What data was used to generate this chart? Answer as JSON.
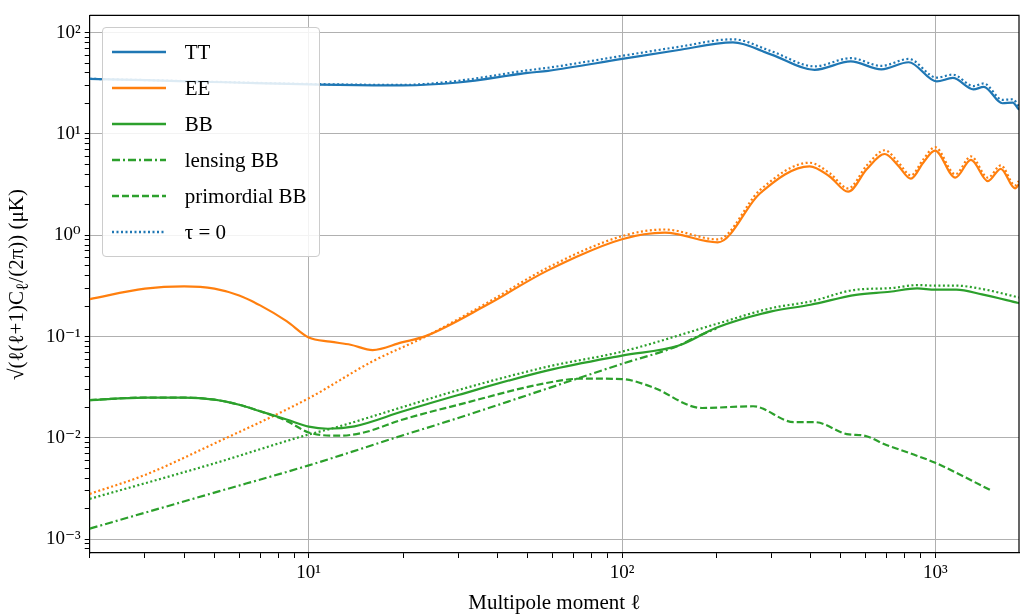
{
  "chart_data": {
    "type": "line",
    "xlabel": "Multipole moment ℓ",
    "ylabel": "√(ℓ(ℓ+1)C$_{ℓ}$/(2π)) (μK)",
    "log": "xy",
    "grid": true,
    "legend": "top left",
    "marker": "none",
    "xlim": [
      2,
      1850
    ],
    "ylim": [
      0.00073,
      148
    ],
    "xticks": [
      {
        "value": 2,
        "label": null
      },
      {
        "value": 3,
        "label": null
      },
      {
        "value": 4,
        "label": null
      },
      {
        "value": 5,
        "label": null
      },
      {
        "value": 6,
        "label": null
      },
      {
        "value": 7,
        "label": null
      },
      {
        "value": 8,
        "label": null
      },
      {
        "value": 9,
        "label": null
      },
      {
        "value": 10,
        "label": "10¹"
      },
      {
        "value": 20,
        "label": null
      },
      {
        "value": 30,
        "label": null
      },
      {
        "value": 40,
        "label": null
      },
      {
        "value": 50,
        "label": null
      },
      {
        "value": 60,
        "label": null
      },
      {
        "value": 70,
        "label": null
      },
      {
        "value": 80,
        "label": null
      },
      {
        "value": 90,
        "label": null
      },
      {
        "value": 100,
        "label": "10²"
      },
      {
        "value": 200,
        "label": null
      },
      {
        "value": 300,
        "label": null
      },
      {
        "value": 400,
        "label": null
      },
      {
        "value": 500,
        "label": null
      },
      {
        "value": 600,
        "label": null
      },
      {
        "value": 700,
        "label": null
      },
      {
        "value": 800,
        "label": null
      },
      {
        "value": 900,
        "label": null
      },
      {
        "value": 1000,
        "label": "10³"
      }
    ],
    "yticks": [
      {
        "value": 0.0008,
        "label": null
      },
      {
        "value": 0.0009,
        "label": null
      },
      {
        "value": 0.001,
        "label": "10⁻³"
      },
      {
        "value": 0.002,
        "label": null
      },
      {
        "value": 0.003,
        "label": null
      },
      {
        "value": 0.004,
        "label": null
      },
      {
        "value": 0.005,
        "label": null
      },
      {
        "value": 0.006,
        "label": null
      },
      {
        "value": 0.007,
        "label": null
      },
      {
        "value": 0.008,
        "label": null
      },
      {
        "value": 0.009,
        "label": null
      },
      {
        "value": 0.01,
        "label": "10⁻²"
      },
      {
        "value": 0.02,
        "label": null
      },
      {
        "value": 0.03,
        "label": null
      },
      {
        "value": 0.04,
        "label": null
      },
      {
        "value": 0.05,
        "label": null
      },
      {
        "value": 0.06,
        "label": null
      },
      {
        "value": 0.07,
        "label": null
      },
      {
        "value": 0.08,
        "label": null
      },
      {
        "value": 0.09,
        "label": null
      },
      {
        "value": 0.1,
        "label": "10⁻¹"
      },
      {
        "value": 0.2,
        "label": null
      },
      {
        "value": 0.3,
        "label": null
      },
      {
        "value": 0.4,
        "label": null
      },
      {
        "value": 0.5,
        "label": null
      },
      {
        "value": 0.6,
        "label": null
      },
      {
        "value": 0.7,
        "label": null
      },
      {
        "value": 0.8,
        "label": null
      },
      {
        "value": 0.9,
        "label": null
      },
      {
        "value": 1,
        "label": "10⁰"
      },
      {
        "value": 2,
        "label": null
      },
      {
        "value": 3,
        "label": null
      },
      {
        "value": 4,
        "label": null
      },
      {
        "value": 5,
        "label": null
      },
      {
        "value": 6,
        "label": null
      },
      {
        "value": 7,
        "label": null
      },
      {
        "value": 8,
        "label": null
      },
      {
        "value": 9,
        "label": null
      },
      {
        "value": 10,
        "label": "10¹"
      },
      {
        "value": 20,
        "label": null
      },
      {
        "value": 30,
        "label": null
      },
      {
        "value": 40,
        "label": null
      },
      {
        "value": 50,
        "label": null
      },
      {
        "value": 60,
        "label": null
      },
      {
        "value": 70,
        "label": null
      },
      {
        "value": 80,
        "label": null
      },
      {
        "value": 90,
        "label": null
      },
      {
        "value": 100,
        "label": "10²"
      }
    ],
    "series": [
      {
        "name": "TT",
        "color": "#1f77b4",
        "line_style": "solid",
        "x": [
          2,
          20,
          30,
          50,
          58,
          100,
          150,
          226,
          300,
          412,
          537,
          673,
          822,
          1010,
          1137,
          1324,
          1428,
          1637,
          1766,
          1850
        ],
        "values": [
          35,
          30.2,
          32.2,
          40,
          42,
          55,
          67,
          80,
          60.7,
          43,
          52,
          43.4,
          51,
          33,
          35.7,
          27.5,
          29.2,
          20.1,
          20.4,
          17.3
        ]
      },
      {
        "name": "EE",
        "color": "#ff7f0e",
        "line_style": "solid",
        "x": [
          2,
          3,
          4,
          5,
          6,
          7,
          8.5,
          10,
          11.7,
          13.6,
          16,
          19.8,
          23.6,
          37.1,
          58,
          100,
          137,
          202,
          276,
          397,
          460,
          527,
          605,
          690,
          760,
          836,
          915,
          998,
          1159,
          1300,
          1472,
          1618,
          1797,
          1850
        ],
        "values": [
          0.234,
          0.297,
          0.313,
          0.297,
          0.254,
          0.203,
          0.142,
          0.098,
          0.089,
          0.083,
          0.0736,
          0.0875,
          0.101,
          0.206,
          0.45,
          0.914,
          1.06,
          0.85,
          2.6,
          4.79,
          3.8,
          2.69,
          4.5,
          6.34,
          4.9,
          3.62,
          5.2,
          6.84,
          3.7,
          5.55,
          3.42,
          4.53,
          2.9,
          3.2
        ]
      },
      {
        "name": "BB",
        "color": "#2ca02c",
        "line_style": "solid",
        "x": [
          2,
          3,
          4,
          5,
          6,
          7,
          8.5,
          10,
          11.5,
          14,
          20,
          30,
          58,
          100,
          151,
          200,
          300,
          400,
          558,
          716,
          875,
          1000,
          1167,
          1409,
          1850
        ],
        "values": [
          0.0236,
          0.025,
          0.025,
          0.0238,
          0.0212,
          0.0183,
          0.0152,
          0.0129,
          0.0123,
          0.013,
          0.0183,
          0.0265,
          0.0464,
          0.0649,
          0.081,
          0.122,
          0.177,
          0.206,
          0.258,
          0.277,
          0.299,
          0.29,
          0.29,
          0.261,
          0.214
        ]
      },
      {
        "name": "lensing BB",
        "color": "#2ca02c",
        "line_style": "dashdot",
        "x": [
          2,
          5,
          10,
          20,
          30,
          58,
          100,
          151,
          171,
          200
        ],
        "values": [
          0.00127,
          0.00288,
          0.00535,
          0.0106,
          0.0157,
          0.0308,
          0.0538,
          0.081,
          0.098,
          0.12
        ]
      },
      {
        "name": "primordial BB",
        "color": "#2ca02c",
        "line_style": "dashed",
        "x": [
          2,
          3,
          4,
          5,
          6,
          7,
          8.5,
          10,
          12.5,
          15,
          20,
          30,
          58,
          75,
          100,
          124,
          180,
          262,
          354,
          412,
          530,
          586,
          698,
          853,
          1000,
          1500
        ],
        "values": [
          0.0236,
          0.025,
          0.025,
          0.0238,
          0.0212,
          0.0183,
          0.0147,
          0.0113,
          0.0105,
          0.0113,
          0.0152,
          0.0212,
          0.035,
          0.0385,
          0.038,
          0.032,
          0.0197,
          0.0205,
          0.0143,
          0.0143,
          0.0108,
          0.0106,
          0.0085,
          0.00684,
          0.00567,
          0.00305
        ]
      },
      {
        "name": "τ = 0",
        "color": "#1f77b4",
        "line_style": "dotted",
        "x": [
          2,
          20,
          30,
          50,
          58,
          100,
          150,
          226,
          300,
          412,
          537,
          673,
          822,
          1010,
          1137,
          1324,
          1428,
          1637,
          1766,
          1850
        ],
        "values": [
          35,
          30.5,
          33.5,
          42.5,
          45,
          59,
          72,
          86,
          65.5,
          46.5,
          56,
          47,
          55,
          36,
          38.5,
          29.7,
          31.5,
          21.7,
          22,
          18.7
        ]
      },
      {
        "color": "#ff7f0e",
        "line_style": "dotted",
        "x": [
          2,
          3,
          5,
          10,
          16,
          23.6,
          37.1,
          58,
          100,
          137,
          202,
          276,
          397,
          460,
          527,
          605,
          690,
          760,
          836,
          915,
          998,
          1159,
          1300,
          1472,
          1618,
          1797,
          1850
        ],
        "values": [
          0.0028,
          0.0043,
          0.0088,
          0.0246,
          0.057,
          0.1,
          0.215,
          0.48,
          0.98,
          1.14,
          0.91,
          2.8,
          5.2,
          4.1,
          2.9,
          4.9,
          6.9,
          5.3,
          3.9,
          5.6,
          7.4,
          4,
          6,
          3.7,
          4.9,
          3.1,
          3.45
        ]
      },
      {
        "color": "#2ca02c",
        "line_style": "dotted",
        "x": [
          2,
          5,
          10,
          12,
          20,
          30,
          58,
          100,
          200,
          300,
          400,
          558,
          716,
          875,
          1000,
          1167,
          1409,
          1850
        ],
        "values": [
          0.0025,
          0.0056,
          0.0108,
          0.0125,
          0.0202,
          0.0296,
          0.0505,
          0.071,
          0.133,
          0.191,
          0.222,
          0.29,
          0.3,
          0.322,
          0.318,
          0.318,
          0.295,
          0.243
        ]
      }
    ]
  }
}
